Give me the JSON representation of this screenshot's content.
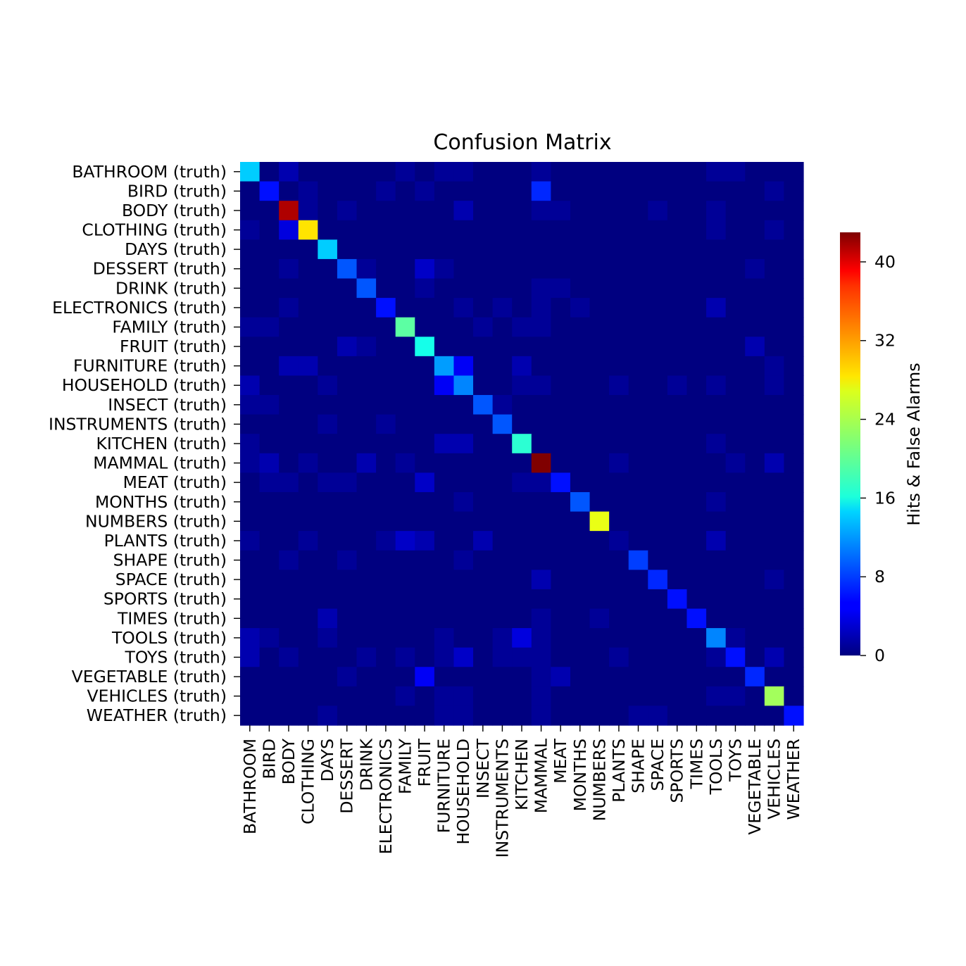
{
  "chart_data": {
    "type": "heatmap",
    "title": "Confusion Matrix",
    "colorbar_label": "Hits & False Alarms",
    "colormap": "jet",
    "vmin": 0,
    "vmax": 43,
    "colorbar_ticks": [
      0,
      8,
      16,
      24,
      32,
      40
    ],
    "row_labels": [
      "BATHROOM (truth)",
      "BIRD (truth)",
      "BODY (truth)",
      "CLOTHING (truth)",
      "DAYS (truth)",
      "DESSERT (truth)",
      "DRINK (truth)",
      "ELECTRONICS (truth)",
      "FAMILY (truth)",
      "FRUIT (truth)",
      "FURNITURE (truth)",
      "HOUSEHOLD (truth)",
      "INSECT (truth)",
      "INSTRUMENTS (truth)",
      "KITCHEN (truth)",
      "MAMMAL (truth)",
      "MEAT (truth)",
      "MONTHS (truth)",
      "NUMBERS (truth)",
      "PLANTS (truth)",
      "SHAPE (truth)",
      "SPACE (truth)",
      "SPORTS (truth)",
      "TIMES (truth)",
      "TOOLS (truth)",
      "TOYS (truth)",
      "VEGETABLE (truth)",
      "VEHICLES (truth)",
      "WEATHER (truth)"
    ],
    "col_labels": [
      "BATHROOM",
      "BIRD",
      "BODY",
      "CLOTHING",
      "DAYS",
      "DESSERT",
      "DRINK",
      "ELECTRONICS",
      "FAMILY",
      "FRUIT",
      "FURNITURE",
      "HOUSEHOLD",
      "INSECT",
      "INSTRUMENTS",
      "KITCHEN",
      "MAMMAL",
      "MEAT",
      "MONTHS",
      "NUMBERS",
      "PLANTS",
      "SHAPE",
      "SPACE",
      "SPORTS",
      "TIMES",
      "TOOLS",
      "TOYS",
      "VEGETABLE",
      "VEHICLES",
      "WEATHER"
    ],
    "matrix": [
      [
        14,
        0,
        2,
        0,
        0,
        0,
        0,
        0,
        1,
        0,
        1,
        1,
        0,
        0,
        0,
        1,
        0,
        0,
        0,
        0,
        0,
        0,
        0,
        0,
        1,
        1,
        0,
        0,
        0
      ],
      [
        0,
        6,
        0,
        1,
        0,
        0,
        0,
        1,
        0,
        1,
        0,
        0,
        0,
        0,
        0,
        7,
        0,
        0,
        0,
        0,
        0,
        0,
        0,
        0,
        0,
        0,
        0,
        1,
        0
      ],
      [
        0,
        0,
        41,
        1,
        0,
        1,
        0,
        0,
        0,
        0,
        0,
        2,
        0,
        0,
        0,
        1,
        1,
        0,
        0,
        0,
        0,
        1,
        0,
        0,
        1,
        0,
        0,
        0,
        0
      ],
      [
        1,
        0,
        4,
        28,
        0,
        0,
        0,
        0,
        0,
        0,
        0,
        0,
        0,
        0,
        0,
        0,
        0,
        0,
        0,
        0,
        0,
        0,
        0,
        0,
        1,
        0,
        0,
        1,
        0
      ],
      [
        0,
        0,
        0,
        0,
        14,
        0,
        0,
        0,
        0,
        0,
        0,
        0,
        0,
        0,
        0,
        0,
        0,
        0,
        0,
        0,
        0,
        0,
        0,
        0,
        0,
        0,
        0,
        0,
        0
      ],
      [
        0,
        0,
        1,
        0,
        0,
        9,
        1,
        0,
        0,
        3,
        1,
        0,
        0,
        0,
        0,
        0,
        0,
        0,
        0,
        0,
        0,
        0,
        0,
        0,
        0,
        0,
        1,
        0,
        0
      ],
      [
        0,
        0,
        0,
        0,
        0,
        0,
        9,
        0,
        0,
        1,
        0,
        0,
        0,
        0,
        0,
        1,
        1,
        0,
        0,
        0,
        0,
        0,
        0,
        0,
        0,
        0,
        0,
        0,
        0
      ],
      [
        0,
        0,
        1,
        0,
        0,
        0,
        0,
        6,
        0,
        0,
        0,
        1,
        0,
        1,
        0,
        1,
        0,
        1,
        0,
        0,
        0,
        0,
        0,
        0,
        2,
        0,
        0,
        0,
        0
      ],
      [
        1,
        1,
        0,
        0,
        0,
        0,
        0,
        0,
        20,
        0,
        0,
        0,
        1,
        0,
        1,
        1,
        0,
        0,
        0,
        0,
        0,
        0,
        0,
        0,
        0,
        0,
        0,
        0,
        0
      ],
      [
        0,
        0,
        0,
        0,
        0,
        2,
        1,
        0,
        0,
        17,
        0,
        0,
        0,
        0,
        0,
        0,
        0,
        0,
        0,
        0,
        0,
        0,
        0,
        0,
        0,
        0,
        2,
        0,
        0
      ],
      [
        0,
        0,
        2,
        2,
        0,
        0,
        0,
        0,
        0,
        0,
        12,
        5,
        0,
        0,
        2,
        0,
        0,
        0,
        0,
        0,
        0,
        0,
        0,
        0,
        0,
        0,
        0,
        1,
        0
      ],
      [
        2,
        0,
        0,
        0,
        1,
        0,
        0,
        0,
        0,
        0,
        5,
        11,
        0,
        0,
        1,
        1,
        0,
        0,
        0,
        1,
        0,
        0,
        1,
        0,
        1,
        0,
        0,
        1,
        0
      ],
      [
        1,
        1,
        0,
        0,
        0,
        0,
        0,
        0,
        0,
        0,
        0,
        0,
        9,
        1,
        0,
        0,
        0,
        0,
        0,
        0,
        0,
        0,
        0,
        0,
        0,
        0,
        0,
        0,
        0
      ],
      [
        0,
        0,
        0,
        0,
        1,
        0,
        0,
        1,
        0,
        0,
        0,
        0,
        0,
        9,
        0,
        0,
        0,
        0,
        0,
        0,
        0,
        0,
        0,
        0,
        0,
        0,
        0,
        0,
        0
      ],
      [
        1,
        0,
        0,
        0,
        0,
        0,
        0,
        0,
        0,
        0,
        2,
        2,
        0,
        0,
        18,
        0,
        0,
        0,
        0,
        0,
        0,
        0,
        0,
        0,
        1,
        0,
        0,
        0,
        0
      ],
      [
        1,
        2,
        0,
        1,
        0,
        0,
        2,
        0,
        1,
        0,
        0,
        0,
        0,
        0,
        0,
        43,
        0,
        0,
        0,
        1,
        0,
        0,
        0,
        0,
        0,
        1,
        0,
        2,
        0
      ],
      [
        0,
        1,
        1,
        0,
        1,
        1,
        0,
        0,
        0,
        3,
        0,
        0,
        0,
        0,
        1,
        1,
        6,
        0,
        0,
        0,
        0,
        0,
        0,
        0,
        0,
        0,
        0,
        0,
        0
      ],
      [
        0,
        0,
        0,
        0,
        0,
        0,
        0,
        0,
        0,
        0,
        0,
        1,
        0,
        0,
        0,
        0,
        0,
        9,
        0,
        0,
        0,
        0,
        0,
        0,
        1,
        0,
        0,
        0,
        0
      ],
      [
        0,
        0,
        0,
        0,
        0,
        0,
        0,
        0,
        0,
        0,
        0,
        0,
        0,
        0,
        0,
        0,
        0,
        0,
        26,
        0,
        0,
        0,
        0,
        0,
        0,
        0,
        0,
        0,
        0
      ],
      [
        1,
        0,
        0,
        1,
        0,
        0,
        0,
        1,
        3,
        2,
        0,
        0,
        2,
        0,
        0,
        0,
        0,
        0,
        0,
        1,
        0,
        0,
        0,
        0,
        2,
        0,
        0,
        0,
        0
      ],
      [
        0,
        0,
        1,
        0,
        0,
        1,
        0,
        0,
        0,
        0,
        0,
        1,
        0,
        0,
        0,
        0,
        0,
        0,
        0,
        0,
        8,
        0,
        0,
        0,
        0,
        0,
        0,
        0,
        0
      ],
      [
        0,
        0,
        0,
        0,
        0,
        0,
        0,
        0,
        0,
        0,
        0,
        0,
        0,
        0,
        0,
        2,
        0,
        0,
        0,
        0,
        0,
        7,
        0,
        0,
        0,
        0,
        0,
        1,
        0
      ],
      [
        0,
        0,
        0,
        0,
        0,
        0,
        0,
        0,
        0,
        0,
        0,
        0,
        0,
        0,
        0,
        0,
        0,
        0,
        0,
        0,
        0,
        0,
        6,
        0,
        0,
        0,
        0,
        0,
        0
      ],
      [
        0,
        0,
        0,
        0,
        2,
        0,
        0,
        0,
        0,
        0,
        0,
        0,
        0,
        0,
        0,
        1,
        0,
        0,
        1,
        0,
        0,
        0,
        0,
        6,
        0,
        0,
        0,
        0,
        0
      ],
      [
        2,
        1,
        0,
        0,
        1,
        0,
        0,
        0,
        0,
        0,
        1,
        0,
        0,
        1,
        4,
        1,
        0,
        0,
        0,
        0,
        0,
        0,
        0,
        0,
        11,
        1,
        0,
        0,
        0
      ],
      [
        2,
        0,
        1,
        0,
        0,
        0,
        1,
        0,
        1,
        0,
        1,
        3,
        0,
        1,
        1,
        1,
        0,
        0,
        0,
        1,
        0,
        0,
        0,
        0,
        1,
        6,
        0,
        2,
        0
      ],
      [
        0,
        0,
        0,
        0,
        0,
        1,
        0,
        0,
        0,
        5,
        0,
        0,
        0,
        0,
        0,
        1,
        2,
        0,
        0,
        0,
        0,
        0,
        0,
        0,
        0,
        0,
        7,
        0,
        0
      ],
      [
        0,
        0,
        0,
        0,
        0,
        0,
        0,
        0,
        1,
        0,
        1,
        1,
        0,
        0,
        0,
        1,
        0,
        0,
        0,
        0,
        0,
        0,
        0,
        0,
        1,
        1,
        0,
        23,
        0
      ],
      [
        0,
        0,
        0,
        0,
        1,
        0,
        0,
        0,
        0,
        0,
        1,
        1,
        0,
        0,
        0,
        1,
        0,
        0,
        0,
        0,
        1,
        1,
        0,
        0,
        0,
        0,
        0,
        0,
        6
      ]
    ]
  }
}
